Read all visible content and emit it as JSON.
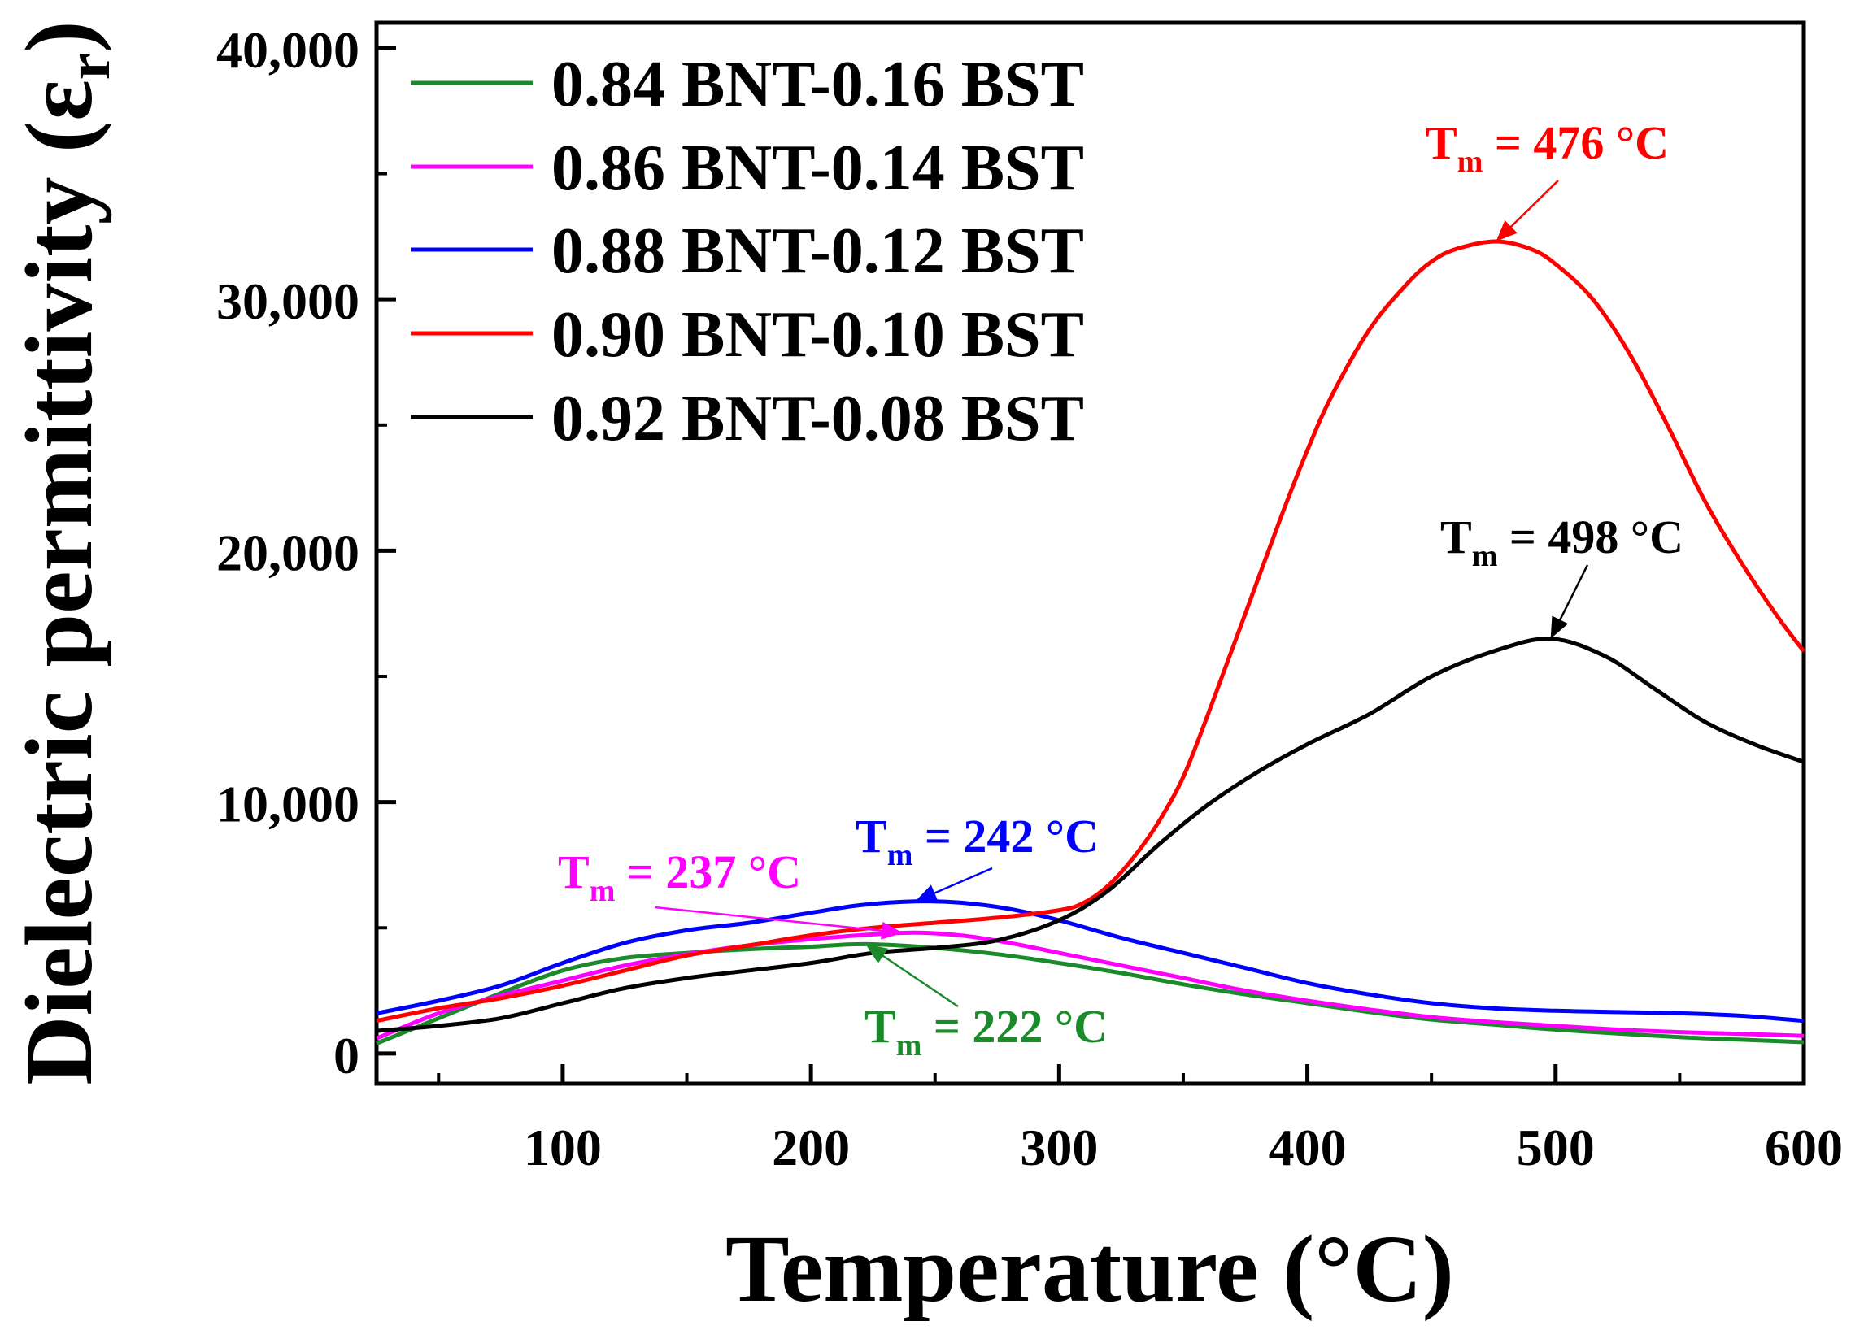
{
  "chart_data": {
    "type": "line",
    "title": "",
    "xlabel": "Temperature (°C)",
    "ylabel_main": "Dielectric permittivity (ε",
    "ylabel_sub": "r",
    "ylabel_close": ")",
    "xlim": [
      25,
      600
    ],
    "ylim": [
      -1200,
      41000
    ],
    "xticks": [
      100,
      200,
      300,
      400,
      500,
      600
    ],
    "xtick_labels": [
      "100",
      "200",
      "300",
      "400",
      "500",
      "600"
    ],
    "yticks": [
      0,
      10000,
      20000,
      30000,
      40000
    ],
    "ytick_labels": [
      "0",
      "10,000",
      "20,000",
      "30,000",
      "40,000"
    ],
    "legend_position": "top-left",
    "series": [
      {
        "name": "0.84 BNT-0.16 BST",
        "color": "#1a8a2a",
        "x": [
          25,
          50,
          75,
          100,
          125,
          150,
          175,
          200,
          222,
          250,
          275,
          300,
          325,
          350,
          375,
          400,
          425,
          450,
          475,
          500,
          525,
          550,
          575,
          600
        ],
        "y": [
          400,
          1400,
          2400,
          3300,
          3800,
          4000,
          4150,
          4250,
          4350,
          4200,
          3950,
          3600,
          3200,
          2750,
          2350,
          2000,
          1650,
          1350,
          1150,
          950,
          800,
          650,
          550,
          450
        ]
      },
      {
        "name": "0.86 BNT-0.14 BST",
        "color": "#ff00ff",
        "x": [
          25,
          50,
          75,
          100,
          125,
          150,
          175,
          200,
          237,
          260,
          280,
          300,
          325,
          350,
          375,
          400,
          425,
          450,
          475,
          500,
          525,
          550,
          575,
          600
        ],
        "y": [
          600,
          1600,
          2300,
          2900,
          3500,
          3950,
          4300,
          4550,
          4800,
          4700,
          4400,
          4000,
          3500,
          3000,
          2500,
          2100,
          1750,
          1450,
          1250,
          1100,
          950,
          850,
          780,
          700
        ]
      },
      {
        "name": "0.88 BNT-0.12 BST",
        "color": "#0000ff",
        "x": [
          25,
          50,
          75,
          100,
          125,
          150,
          175,
          200,
          220,
          242,
          260,
          280,
          300,
          325,
          350,
          375,
          400,
          425,
          450,
          475,
          500,
          525,
          550,
          575,
          600
        ],
        "y": [
          1600,
          2100,
          2700,
          3600,
          4400,
          4900,
          5200,
          5600,
          5900,
          6050,
          6000,
          5750,
          5300,
          4600,
          4000,
          3400,
          2800,
          2350,
          2000,
          1800,
          1700,
          1650,
          1600,
          1500,
          1300
        ]
      },
      {
        "name": "0.90 BNT-0.10 BST",
        "color": "#ff0000",
        "x": [
          25,
          50,
          75,
          100,
          125,
          150,
          175,
          200,
          225,
          250,
          275,
          300,
          310,
          320,
          330,
          340,
          350,
          360,
          375,
          390,
          400,
          410,
          425,
          440,
          450,
          460,
          476,
          490,
          500,
          515,
          530,
          545,
          560,
          575,
          590,
          600
        ],
        "y": [
          1300,
          1800,
          2200,
          2700,
          3300,
          3900,
          4300,
          4700,
          5000,
          5200,
          5400,
          5700,
          6000,
          6700,
          7800,
          9200,
          11000,
          13500,
          17500,
          21500,
          24000,
          26200,
          28800,
          30600,
          31500,
          32000,
          32300,
          32000,
          31400,
          30000,
          27800,
          25000,
          22000,
          19500,
          17300,
          16000
        ]
      },
      {
        "name": "0.92 BNT-0.08 BST",
        "color": "#000000",
        "x": [
          25,
          50,
          75,
          100,
          125,
          150,
          175,
          200,
          225,
          250,
          275,
          300,
          320,
          340,
          360,
          380,
          400,
          425,
          450,
          475,
          498,
          520,
          540,
          560,
          580,
          600
        ],
        "y": [
          900,
          1100,
          1400,
          2000,
          2600,
          3000,
          3300,
          3600,
          4000,
          4200,
          4500,
          5300,
          6500,
          8300,
          9900,
          11200,
          12300,
          13500,
          15000,
          16000,
          16500,
          15800,
          14500,
          13200,
          12300,
          11600
        ]
      }
    ],
    "annotations": [
      {
        "main": "T",
        "sub": "m",
        "rest": " = 476 °C",
        "color": "#ff0000",
        "peak_x": 476,
        "peak_y": 32300
      },
      {
        "main": "T",
        "sub": "m",
        "rest": " = 498 °C",
        "color": "#000000",
        "peak_x": 498,
        "peak_y": 16500
      },
      {
        "main": "T",
        "sub": "m",
        "rest": " = 242 °C",
        "color": "#0000ff",
        "peak_x": 242,
        "peak_y": 6050
      },
      {
        "main": "T",
        "sub": "m",
        "rest": " = 237 °C",
        "color": "#ff00ff",
        "peak_x": 237,
        "peak_y": 4800
      },
      {
        "main": "T",
        "sub": "m",
        "rest": " = 222 °C",
        "color": "#1a8a2a",
        "peak_x": 222,
        "peak_y": 4350
      }
    ]
  }
}
